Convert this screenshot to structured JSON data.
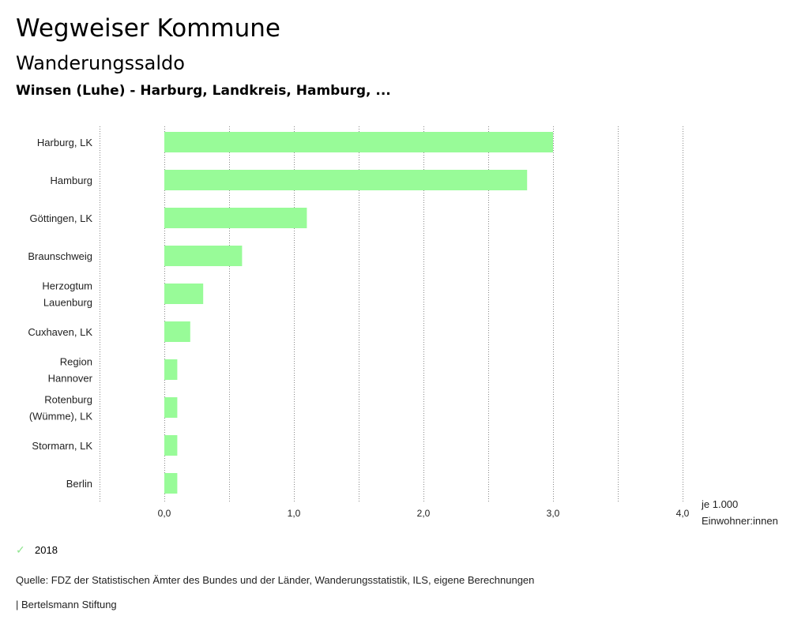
{
  "header": {
    "title": "Wegweiser Kommune",
    "subtitle": "Wanderungssaldo",
    "region": "Winsen (Luhe) - Harburg, Landkreis, Hamburg, ..."
  },
  "chart_data": {
    "type": "bar",
    "orientation": "horizontal",
    "categories": [
      [
        "Harburg, LK"
      ],
      [
        "Hamburg"
      ],
      [
        "Göttingen, LK"
      ],
      [
        "Braunschweig"
      ],
      [
        "Herzogtum",
        "Lauenburg"
      ],
      [
        "Cuxhaven, LK"
      ],
      [
        "Region",
        "Hannover"
      ],
      [
        "Rotenburg",
        "(Wümme), LK"
      ],
      [
        "Stormarn, LK"
      ],
      [
        "Berlin"
      ]
    ],
    "series": [
      {
        "name": "2018",
        "values": [
          3.0,
          2.8,
          1.1,
          0.6,
          0.3,
          0.2,
          0.1,
          0.1,
          0.1,
          0.1
        ]
      }
    ],
    "xlim": [
      -0.5,
      4.0
    ],
    "xticks": [
      0.0,
      1.0,
      2.0,
      3.0,
      4.0
    ],
    "xtick_labels": [
      "0,0",
      "1,0",
      "2,0",
      "3,0",
      "4,0"
    ],
    "gridlines": [
      -0.5,
      0.0,
      0.5,
      1.0,
      1.5,
      2.0,
      2.5,
      3.0,
      3.5,
      4.0
    ],
    "xlabel": [
      "je 1.000",
      "Einwohner:innen"
    ],
    "bar_color": "#98fb98",
    "grid": true
  },
  "legend": {
    "items": [
      {
        "label": "2018",
        "color": "#98fb98"
      }
    ]
  },
  "footer": {
    "source": "Quelle: FDZ der Statistischen Ämter des Bundes und der Länder, Wanderungsstatistik, ILS, eigene Berechnungen",
    "publisher": "| Bertelsmann Stiftung"
  }
}
